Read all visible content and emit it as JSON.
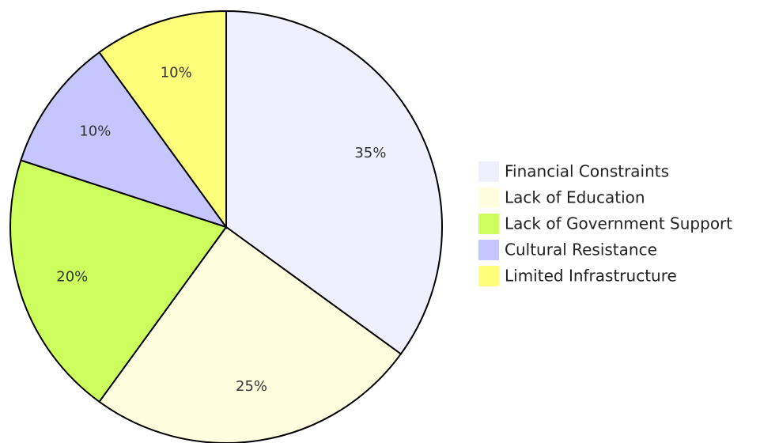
{
  "chart_data": {
    "type": "pie",
    "categories": [
      "Financial Constraints",
      "Lack of Education",
      "Lack of Government Support",
      "Cultural Resistance",
      "Limited Infrastructure"
    ],
    "values": [
      35,
      25,
      20,
      10,
      10
    ],
    "value_labels": [
      "35%",
      "25%",
      "20%",
      "10%",
      "10%"
    ],
    "colors": [
      "#efeffe",
      "#ffffdf",
      "#ccff5e",
      "#c6c6fe",
      "#ffff7c"
    ],
    "legend": "right"
  }
}
